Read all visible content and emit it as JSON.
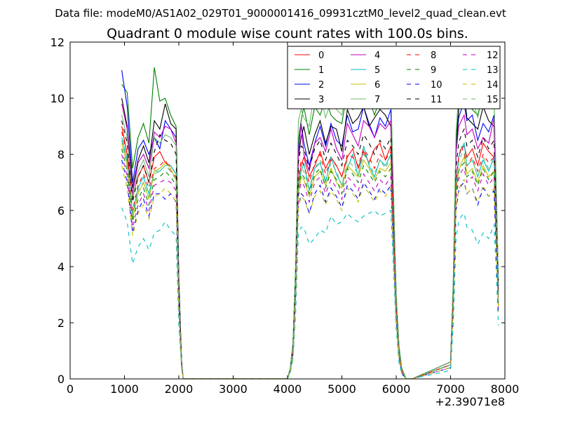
{
  "chart_data": {
    "type": "line",
    "suptitle": "Data file: modeM0/AS1A02_029T01_9000001416_09931cztM0_level2_quad_clean.evt",
    "title": "Quadrant 0 module wise count rates with 100.0s bins.",
    "xlabel": "",
    "ylabel": "",
    "x_offset_label": "+2.39071e8",
    "xlim": [
      0,
      8000
    ],
    "ylim": [
      0,
      12
    ],
    "xticks": [
      0,
      1000,
      2000,
      3000,
      4000,
      5000,
      6000,
      7000,
      8000
    ],
    "yticks": [
      0,
      2,
      4,
      6,
      8,
      10,
      12
    ],
    "grid": false,
    "legend_position": "top-right",
    "x": [
      950,
      1050,
      1150,
      1250,
      1350,
      1450,
      1550,
      1650,
      1750,
      1850,
      1950,
      2000,
      2050,
      2080,
      2200,
      3000,
      4000,
      4050,
      4100,
      4150,
      4200,
      4250,
      4300,
      4400,
      4500,
      4600,
      4700,
      4800,
      4900,
      5000,
      5100,
      5200,
      5300,
      5400,
      5500,
      5600,
      5700,
      5800,
      5900,
      6000,
      6050,
      6100,
      6180,
      6300,
      7000,
      7050,
      7100,
      7150,
      7200,
      7250,
      7300,
      7400,
      7500,
      7600,
      7700,
      7800,
      7850,
      7880
    ],
    "series": [
      {
        "name": "0",
        "color": "#ff0000",
        "dash": "solid",
        "values": [
          9.0,
          8.0,
          6.5,
          7.2,
          7.6,
          7.0,
          7.9,
          8.1,
          7.7,
          7.6,
          7.3,
          3.0,
          0.5,
          0.01,
          0.01,
          0.01,
          0.01,
          0.3,
          1.0,
          3.5,
          7.0,
          7.6,
          7.9,
          7.2,
          7.6,
          8.1,
          7.5,
          7.9,
          7.6,
          7.2,
          7.9,
          8.2,
          7.5,
          8.1,
          7.7,
          8.2,
          8.4,
          7.8,
          8.3,
          2.5,
          1.0,
          0.3,
          0.01,
          0.01,
          0.5,
          3.0,
          6.8,
          7.9,
          8.2,
          8.3,
          7.9,
          8.2,
          7.6,
          8.4,
          8.1,
          7.9,
          5.0,
          3.0
        ]
      },
      {
        "name": "1",
        "color": "#008000",
        "dash": "solid",
        "values": [
          10.5,
          10.2,
          7.5,
          8.6,
          9.1,
          8.4,
          11.1,
          9.9,
          10.0,
          9.4,
          9.0,
          3.5,
          0.7,
          0.01,
          0.01,
          0.01,
          0.01,
          0.4,
          1.3,
          4.0,
          8.5,
          9.2,
          9.7,
          8.7,
          9.7,
          9.4,
          10.0,
          9.4,
          9.2,
          9.1,
          10.3,
          9.6,
          9.8,
          10.3,
          10.0,
          9.4,
          10.0,
          9.8,
          10.1,
          3.0,
          1.2,
          0.4,
          0.01,
          0.01,
          0.6,
          3.5,
          8.5,
          9.7,
          10.5,
          10.8,
          10.0,
          9.6,
          9.4,
          10.2,
          9.8,
          10.0,
          6.0,
          3.5
        ]
      },
      {
        "name": "2",
        "color": "#0000ff",
        "dash": "solid",
        "values": [
          11.0,
          9.7,
          7.0,
          8.2,
          8.5,
          8.0,
          8.6,
          8.2,
          9.2,
          8.9,
          8.6,
          3.4,
          0.6,
          0.01,
          0.01,
          0.01,
          0.01,
          0.3,
          1.1,
          3.8,
          8.2,
          9.1,
          8.4,
          7.6,
          8.4,
          9.0,
          8.3,
          9.1,
          8.5,
          8.3,
          9.4,
          8.8,
          8.9,
          9.7,
          9.1,
          8.6,
          9.3,
          9.0,
          9.6,
          2.8,
          1.1,
          0.3,
          0.01,
          0.01,
          0.6,
          3.4,
          8.3,
          9.3,
          9.6,
          9.8,
          9.2,
          9.4,
          8.5,
          9.1,
          8.8,
          9.4,
          5.8,
          3.5
        ]
      },
      {
        "name": "3",
        "color": "#000000",
        "dash": "solid",
        "values": [
          10.0,
          9.0,
          6.8,
          7.8,
          8.3,
          7.7,
          9.2,
          8.9,
          9.8,
          9.1,
          8.9,
          3.6,
          0.6,
          0.01,
          0.01,
          0.01,
          0.01,
          0.3,
          1.2,
          3.9,
          7.9,
          8.6,
          9.0,
          8.0,
          8.7,
          9.2,
          8.4,
          9.0,
          8.9,
          8.1,
          9.6,
          9.1,
          9.3,
          9.7,
          9.0,
          9.3,
          9.6,
          9.4,
          9.0,
          2.9,
          1.1,
          0.3,
          0.01,
          0.01,
          0.6,
          3.3,
          8.0,
          9.6,
          10.0,
          10.2,
          9.3,
          9.1,
          8.9,
          9.7,
          9.2,
          9.0,
          5.7,
          3.3
        ]
      },
      {
        "name": "4",
        "color": "#bf00bf",
        "dash": "solid",
        "values": [
          9.8,
          8.9,
          6.6,
          7.7,
          8.0,
          7.5,
          8.8,
          8.6,
          9.0,
          8.9,
          8.4,
          3.2,
          0.6,
          0.01,
          0.01,
          0.01,
          0.01,
          0.3,
          1.1,
          3.7,
          8.0,
          9.1,
          8.0,
          7.4,
          8.4,
          8.6,
          8.1,
          8.9,
          8.2,
          7.8,
          9.1,
          8.7,
          8.3,
          9.2,
          9.0,
          8.6,
          9.1,
          8.9,
          9.2,
          2.8,
          1.0,
          0.3,
          0.01,
          0.01,
          0.5,
          3.1,
          8.0,
          9.0,
          9.2,
          9.4,
          8.7,
          8.9,
          8.2,
          8.6,
          8.4,
          9.3,
          5.5,
          3.1
        ]
      },
      {
        "name": "5",
        "color": "#00bfbf",
        "dash": "solid",
        "values": [
          8.6,
          7.8,
          5.9,
          6.8,
          7.2,
          6.6,
          7.4,
          7.4,
          7.6,
          7.6,
          7.3,
          2.8,
          0.5,
          0.01,
          0.01,
          0.01,
          0.01,
          0.3,
          0.9,
          3.2,
          6.8,
          7.4,
          7.7,
          6.7,
          7.5,
          7.7,
          7.0,
          7.9,
          7.3,
          6.9,
          7.5,
          8.0,
          7.2,
          8.3,
          7.6,
          7.2,
          7.8,
          7.6,
          8.0,
          2.4,
          0.9,
          0.3,
          0.01,
          0.01,
          0.5,
          2.8,
          6.8,
          7.9,
          8.2,
          8.4,
          7.6,
          7.8,
          7.2,
          7.8,
          7.4,
          7.9,
          4.8,
          2.7
        ]
      },
      {
        "name": "6",
        "color": "#bfbf00",
        "dash": "solid",
        "values": [
          8.4,
          7.6,
          5.7,
          6.6,
          7.0,
          6.4,
          7.4,
          7.5,
          7.7,
          7.5,
          7.1,
          2.7,
          0.5,
          0.01,
          0.01,
          0.01,
          0.01,
          0.3,
          0.9,
          3.1,
          6.6,
          7.2,
          7.1,
          6.5,
          7.2,
          7.4,
          6.9,
          7.5,
          7.0,
          6.8,
          7.6,
          7.4,
          7.2,
          7.8,
          7.5,
          7.1,
          7.5,
          7.4,
          7.7,
          2.3,
          0.9,
          0.2,
          0.01,
          0.01,
          0.5,
          2.7,
          6.7,
          7.4,
          7.7,
          7.9,
          7.3,
          7.5,
          7.0,
          7.6,
          7.2,
          7.4,
          4.6,
          2.6
        ]
      },
      {
        "name": "7",
        "color": "#6fba6f",
        "dash": "solid",
        "values": [
          9.4,
          8.6,
          6.4,
          7.4,
          7.8,
          7.2,
          8.6,
          8.4,
          8.7,
          8.6,
          8.3,
          3.2,
          0.6,
          0.01,
          0.01,
          0.01,
          0.01,
          0.4,
          1.3,
          4.2,
          9.2,
          9.6,
          9.3,
          9.0,
          10.3,
          10.2,
          9.3,
          9.9,
          9.6,
          9.4,
          10.5,
          10.9,
          10.0,
          10.8,
          11.5,
          10.5,
          10.6,
          10.3,
          10.4,
          3.0,
          1.2,
          0.4,
          0.01,
          0.01,
          0.6,
          3.6,
          8.8,
          10.2,
          10.7,
          10.5,
          9.8,
          10.0,
          9.3,
          10.2,
          9.7,
          10.1,
          6.2,
          3.4
        ]
      },
      {
        "name": "8",
        "color": "#ff0000",
        "dash": "dashed",
        "values": [
          8.8,
          8.0,
          6.0,
          6.9,
          7.3,
          6.8,
          7.5,
          7.6,
          7.8,
          7.4,
          7.2,
          2.8,
          0.5,
          0.01,
          0.01,
          0.01,
          0.01,
          0.3,
          1.0,
          3.4,
          7.2,
          7.8,
          7.6,
          7.0,
          7.7,
          8.0,
          7.3,
          7.8,
          7.6,
          7.2,
          8.0,
          7.9,
          7.6,
          8.2,
          7.9,
          7.5,
          8.0,
          7.8,
          8.1,
          2.5,
          0.9,
          0.3,
          0.01,
          0.01,
          0.5,
          2.9,
          7.1,
          7.9,
          8.3,
          8.0,
          7.6,
          7.9,
          7.4,
          8.0,
          7.7,
          7.9,
          4.9,
          2.8
        ]
      },
      {
        "name": "9",
        "color": "#008000",
        "dash": "dashed",
        "values": [
          8.2,
          7.4,
          5.6,
          6.4,
          6.8,
          6.2,
          7.1,
          7.2,
          7.4,
          7.2,
          6.9,
          2.6,
          0.5,
          0.01,
          0.01,
          0.01,
          0.01,
          0.3,
          0.9,
          3.2,
          6.8,
          7.3,
          7.2,
          6.6,
          7.3,
          7.5,
          6.8,
          7.4,
          7.1,
          6.6,
          7.5,
          7.3,
          7.0,
          7.6,
          7.3,
          7.0,
          7.4,
          7.2,
          7.5,
          2.3,
          0.8,
          0.2,
          0.01,
          0.01,
          0.5,
          2.7,
          6.6,
          7.4,
          7.6,
          7.7,
          7.2,
          7.4,
          6.9,
          7.5,
          7.1,
          7.4,
          4.5,
          2.6
        ]
      },
      {
        "name": "10",
        "color": "#0000ff",
        "dash": "dashed",
        "values": [
          7.8,
          7.0,
          5.2,
          6.0,
          6.4,
          5.8,
          6.6,
          6.6,
          6.4,
          6.6,
          6.3,
          2.4,
          0.4,
          0.01,
          0.01,
          0.01,
          0.01,
          0.3,
          0.8,
          2.9,
          6.1,
          6.6,
          6.5,
          5.9,
          6.6,
          6.9,
          6.3,
          6.8,
          6.5,
          6.1,
          6.9,
          6.7,
          6.4,
          7.0,
          6.7,
          6.4,
          6.8,
          6.6,
          6.9,
          2.1,
          0.8,
          0.2,
          0.01,
          0.01,
          0.4,
          2.4,
          6.0,
          6.7,
          6.9,
          7.0,
          6.6,
          6.8,
          6.2,
          6.8,
          6.5,
          6.7,
          4.1,
          2.3
        ]
      },
      {
        "name": "11",
        "color": "#000000",
        "dash": "dashed",
        "values": [
          9.2,
          8.4,
          6.3,
          7.2,
          7.6,
          7.0,
          8.1,
          8.7,
          8.5,
          8.4,
          8.0,
          3.1,
          0.6,
          0.01,
          0.01,
          0.01,
          0.01,
          0.3,
          1.1,
          3.6,
          7.7,
          8.3,
          8.2,
          7.5,
          8.2,
          8.5,
          7.8,
          8.4,
          8.0,
          7.6,
          8.5,
          8.3,
          8.0,
          8.7,
          8.4,
          8.0,
          8.5,
          8.2,
          8.6,
          2.6,
          1.0,
          0.3,
          0.01,
          0.01,
          0.5,
          3.0,
          7.5,
          8.4,
          8.7,
          8.9,
          8.3,
          8.5,
          7.9,
          8.6,
          8.2,
          8.5,
          5.2,
          3.0
        ]
      },
      {
        "name": "12",
        "color": "#bf00bf",
        "dash": "dashed",
        "values": [
          8.0,
          7.2,
          5.4,
          6.2,
          6.6,
          6.0,
          6.9,
          7.0,
          7.1,
          7.0,
          6.7,
          2.6,
          0.5,
          0.01,
          0.01,
          0.01,
          0.01,
          0.3,
          0.9,
          3.1,
          6.5,
          7.0,
          6.9,
          6.3,
          7.0,
          7.2,
          6.6,
          7.1,
          6.8,
          6.4,
          7.2,
          7.0,
          6.7,
          7.3,
          7.0,
          6.7,
          7.1,
          6.9,
          7.2,
          2.2,
          0.8,
          0.2,
          0.01,
          0.01,
          0.4,
          2.6,
          6.4,
          7.1,
          7.4,
          7.5,
          7.0,
          7.2,
          6.7,
          7.3,
          6.9,
          7.2,
          4.4,
          2.5
        ]
      },
      {
        "name": "13",
        "color": "#00bfbf",
        "dash": "dashed",
        "values": [
          6.1,
          5.6,
          4.1,
          4.7,
          5.0,
          4.6,
          5.2,
          5.3,
          5.6,
          5.3,
          5.1,
          1.9,
          0.4,
          0.01,
          0.01,
          0.01,
          0.01,
          0.2,
          0.7,
          2.3,
          5.2,
          5.4,
          5.4,
          4.8,
          5.0,
          5.3,
          5.2,
          5.8,
          5.5,
          5.6,
          5.9,
          5.7,
          5.6,
          5.8,
          5.9,
          6.0,
          5.8,
          5.9,
          6.0,
          1.8,
          0.6,
          0.2,
          0.01,
          0.01,
          0.3,
          2.0,
          5.0,
          5.6,
          5.8,
          5.9,
          5.4,
          5.3,
          4.8,
          5.2,
          5.0,
          5.5,
          3.4,
          1.9
        ]
      },
      {
        "name": "14",
        "color": "#bfbf00",
        "dash": "dashed",
        "values": [
          7.6,
          6.8,
          5.1,
          5.9,
          6.2,
          5.7,
          6.5,
          6.6,
          6.8,
          6.6,
          6.3,
          2.4,
          0.4,
          0.01,
          0.01,
          0.01,
          0.01,
          0.3,
          0.8,
          2.9,
          6.1,
          6.5,
          6.4,
          5.9,
          6.5,
          6.7,
          6.2,
          6.7,
          6.4,
          6.0,
          6.8,
          6.6,
          6.3,
          6.9,
          6.6,
          6.3,
          6.7,
          6.5,
          6.8,
          2.1,
          0.8,
          0.2,
          0.01,
          0.01,
          0.4,
          2.5,
          6.1,
          6.7,
          7.0,
          7.1,
          6.6,
          6.8,
          6.3,
          6.9,
          6.5,
          6.8,
          4.2,
          2.4
        ]
      },
      {
        "name": "15",
        "color": "#6fba6f",
        "dash": "dashed",
        "values": [
          8.5,
          7.7,
          5.8,
          6.7,
          7.0,
          6.5,
          7.3,
          7.4,
          7.6,
          7.4,
          7.1,
          2.7,
          0.5,
          0.01,
          0.01,
          0.01,
          0.01,
          0.3,
          1.0,
          3.3,
          7.0,
          7.5,
          7.4,
          6.8,
          7.5,
          7.8,
          7.1,
          7.7,
          7.4,
          6.9,
          7.8,
          7.6,
          7.3,
          8.0,
          7.7,
          7.3,
          7.8,
          7.5,
          7.9,
          2.4,
          0.9,
          0.3,
          0.01,
          0.01,
          0.5,
          2.8,
          7.0,
          7.7,
          8.0,
          8.1,
          7.6,
          7.8,
          7.2,
          7.9,
          7.5,
          7.8,
          4.8,
          2.7
        ]
      }
    ]
  }
}
